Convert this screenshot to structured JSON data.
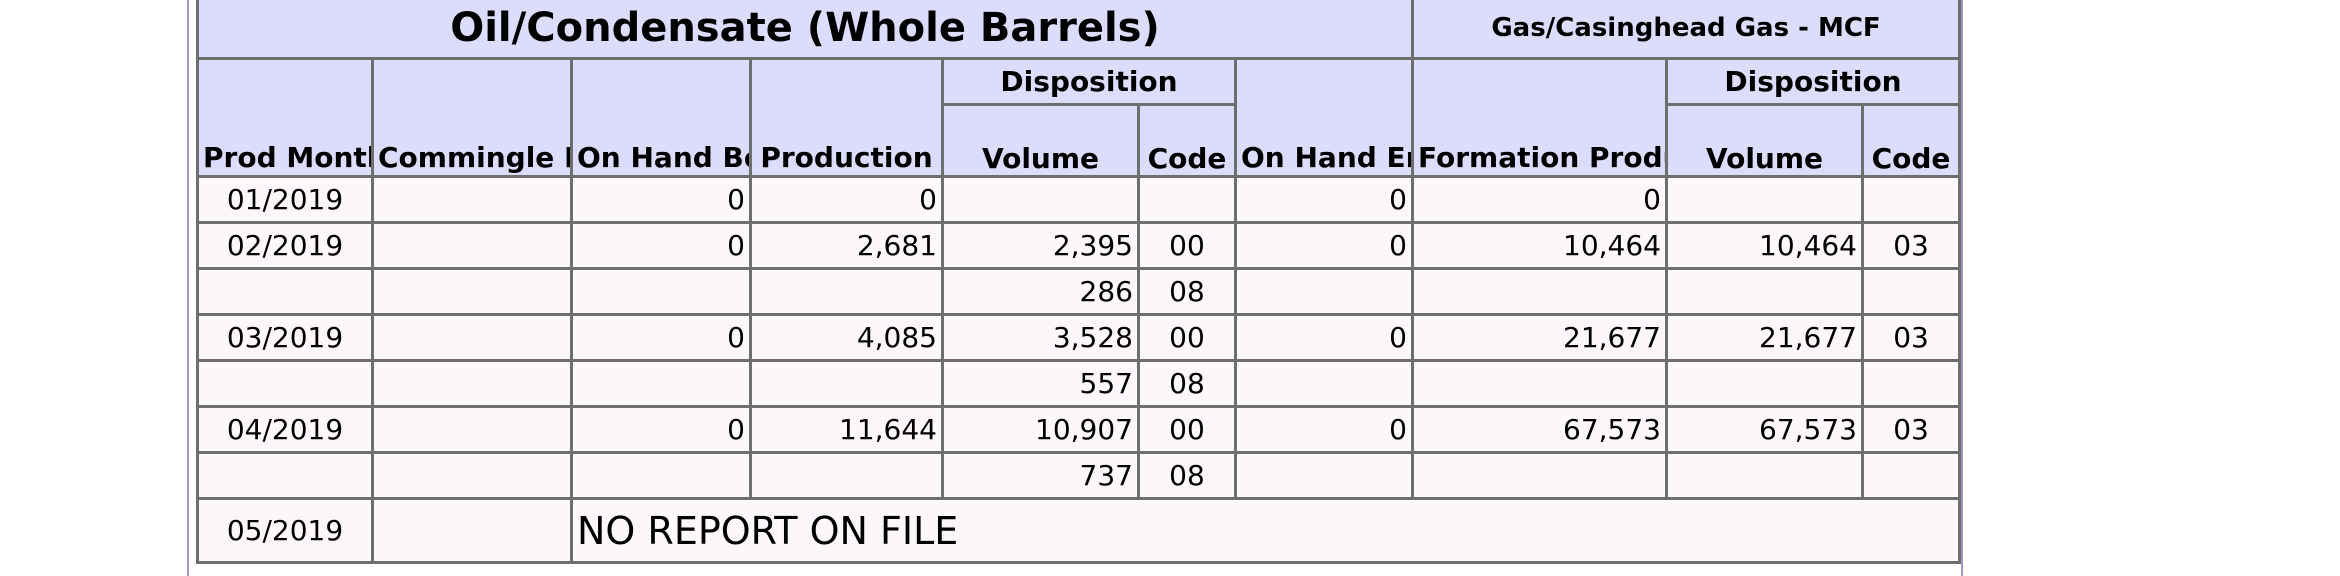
{
  "header": {
    "oil_title": "Oil/Condensate (Whole Barrels)",
    "gas_title": "Gas/Casinghead Gas - MCF"
  },
  "columns": {
    "prod_month": "Prod Month",
    "commingle_permit": "Commingle Permit No.",
    "on_hand_begin": "On Hand Beginning of Month",
    "production": "Production",
    "oil_disposition": "Disposition",
    "oil_volume": "Volume",
    "oil_code": "Code",
    "on_hand_end": "On Hand End of Month",
    "formation_production": "Formation Production",
    "gas_disposition": "Disposition",
    "gas_volume": "Volume",
    "gas_code": "Code"
  },
  "rows": [
    {
      "month": "01/2019",
      "permit": "",
      "on_hand_begin": "0",
      "production": "0",
      "oil_volume": "",
      "oil_code": "",
      "on_hand_end": "0",
      "formation": "0",
      "gas_volume": "",
      "gas_code": ""
    },
    {
      "month": "02/2019",
      "permit": "",
      "on_hand_begin": "0",
      "production": "2,681",
      "oil_volume": "2,395",
      "oil_code": "00",
      "on_hand_end": "0",
      "formation": "10,464",
      "gas_volume": "10,464",
      "gas_code": "03"
    },
    {
      "month": "",
      "permit": "",
      "on_hand_begin": "",
      "production": "",
      "oil_volume": "286",
      "oil_code": "08",
      "on_hand_end": "",
      "formation": "",
      "gas_volume": "",
      "gas_code": ""
    },
    {
      "month": "03/2019",
      "permit": "",
      "on_hand_begin": "0",
      "production": "4,085",
      "oil_volume": "3,528",
      "oil_code": "00",
      "on_hand_end": "0",
      "formation": "21,677",
      "gas_volume": "21,677",
      "gas_code": "03"
    },
    {
      "month": "",
      "permit": "",
      "on_hand_begin": "",
      "production": "",
      "oil_volume": "557",
      "oil_code": "08",
      "on_hand_end": "",
      "formation": "",
      "gas_volume": "",
      "gas_code": ""
    },
    {
      "month": "04/2019",
      "permit": "",
      "on_hand_begin": "0",
      "production": "11,644",
      "oil_volume": "10,907",
      "oil_code": "00",
      "on_hand_end": "0",
      "formation": "67,573",
      "gas_volume": "67,573",
      "gas_code": "03"
    },
    {
      "month": "",
      "permit": "",
      "on_hand_begin": "",
      "production": "",
      "oil_volume": "737",
      "oil_code": "08",
      "on_hand_end": "",
      "formation": "",
      "gas_volume": "",
      "gas_code": ""
    }
  ],
  "last_row": {
    "month": "05/2019",
    "permit": "",
    "message": "NO REPORT ON FILE"
  }
}
